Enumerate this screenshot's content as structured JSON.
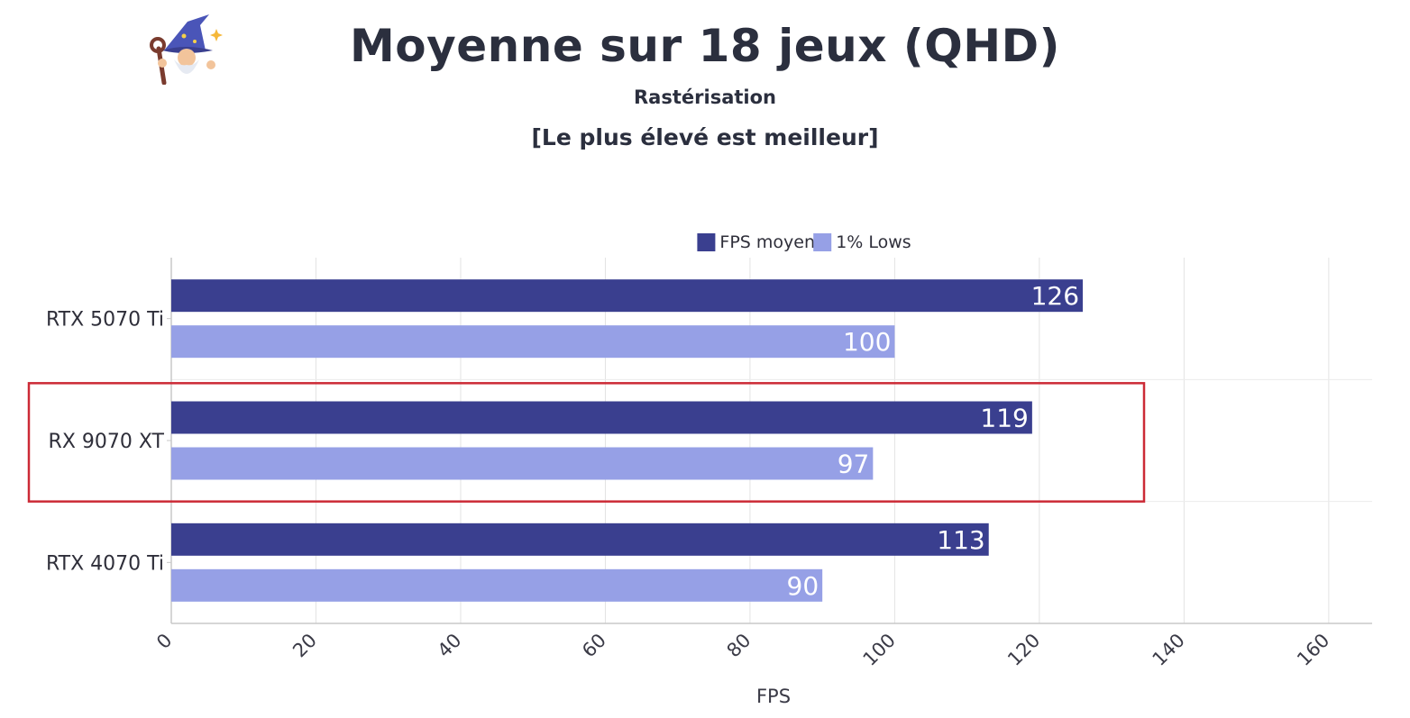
{
  "page": {
    "title": "Moyenne sur 18 jeux (QHD)",
    "subtitle": "Rastérisation",
    "note": "[Le plus élevé est meilleur]",
    "logo_icon": "wizard-icon"
  },
  "chart_data": {
    "type": "bar",
    "orientation": "horizontal",
    "title": "Moyenne sur 18 jeux (QHD)",
    "subtitle": "Rastérisation",
    "xlabel": "FPS",
    "ylabel": "",
    "categories": [
      "RTX 5070 Ti",
      "RX 9070 XT",
      "RTX 4070 Ti"
    ],
    "series": [
      {
        "name": "FPS moyen",
        "values": [
          126,
          119,
          113
        ],
        "color": "#3a3f8f"
      },
      {
        "name": "1% Lows",
        "values": [
          100,
          97,
          90
        ],
        "color": "#96a0e6"
      }
    ],
    "xlim": [
      0,
      166
    ],
    "xticks": [
      "0",
      "20",
      "40",
      "60",
      "80",
      "100",
      "120",
      "140",
      "160"
    ],
    "grid": true,
    "legend": "top-center",
    "highlighted_category": "RX 9070 XT",
    "highlight_color": "#cc2a36"
  }
}
